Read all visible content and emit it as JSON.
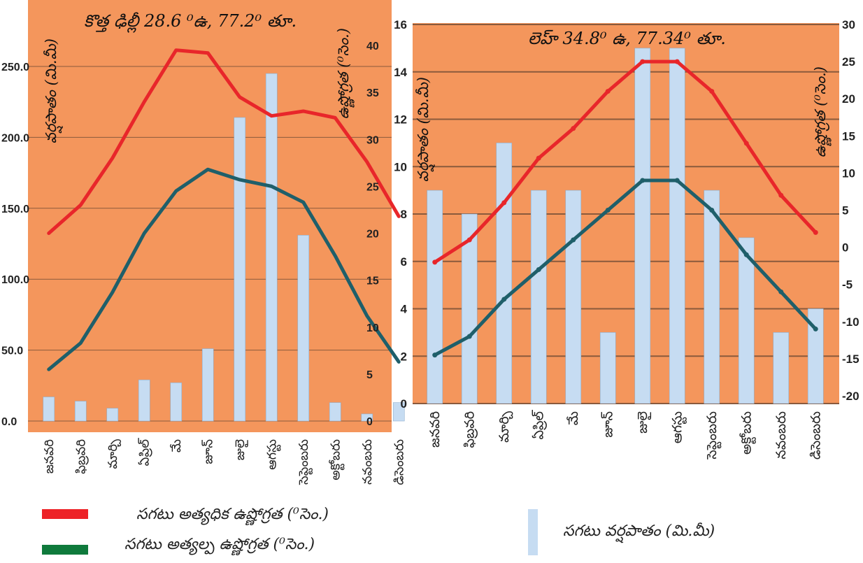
{
  "colors": {
    "plot_bg": "#f4965c",
    "grid": "#8a5a3c",
    "max_line": "#e8262a",
    "min_line": "#1f5f6a",
    "bar": "#c6dcf2",
    "legend_max": "#ed2227",
    "legend_min": "#0f7a3c"
  },
  "chart_data": [
    {
      "type": "bar+line",
      "title": "కొత్త ఢిల్లీ  28.6 ⁰ఉ, 77.2⁰ తూ.",
      "categories": [
        "జనవరి",
        "ఫిబ్రవరి",
        "మార్చి",
        "ఏప్రిల్",
        "మే",
        "జూన్",
        "జులై",
        "ఆగస్టు",
        "సెప్టెంబరు",
        "అక్టోబరు",
        "నవంబరు",
        "డిసెంబరు"
      ],
      "left_axis": {
        "label": "వర్షపాతం (మి.మీ)",
        "range": [
          0,
          250
        ],
        "ticks": [
          "0.0",
          "50.0",
          "100.0",
          "150.0",
          "200.0",
          "250.0"
        ]
      },
      "right_axis": {
        "label": "ఉష్ణోగ్రత (⁰సెం.)",
        "range": [
          0,
          40
        ],
        "ticks": [
          "0",
          "5",
          "10",
          "15",
          "20",
          "25",
          "30",
          "35",
          "40"
        ]
      },
      "series": [
        {
          "name": "సగటు వర్షపాతం (మి.మీ)",
          "kind": "bar",
          "axis": "left",
          "values": [
            17,
            14,
            9,
            29,
            27,
            51,
            214,
            245,
            131,
            13,
            5,
            13
          ]
        },
        {
          "name": "సగటు అత్యధిక ఉష్ణోగ్రత (⁰సెం.)",
          "kind": "line",
          "axis": "right",
          "values": [
            20,
            23,
            28,
            34,
            39.5,
            39.2,
            34.5,
            32.5,
            33,
            32.3,
            27.6,
            21.8
          ]
        },
        {
          "name": "సగటు అత్యల్ప ఉష్ణోగ్రత (⁰సెం.)",
          "kind": "line",
          "axis": "right",
          "values": [
            5.5,
            8.3,
            13.7,
            20,
            24.5,
            26.8,
            25.7,
            25,
            23.3,
            17.6,
            11.2,
            6.3
          ]
        }
      ],
      "grid": true
    },
    {
      "type": "bar+line",
      "title": "లెహ్  34.8⁰ ఉ, 77.34⁰ తూ.",
      "categories": [
        "జనవరి",
        "ఫిబ్రవరి",
        "మార్చి",
        "ఏప్రిల్",
        "మే",
        "జూన్",
        "జులై",
        "ఆగస్టు",
        "సెప్టెంబరు",
        "అక్టోబరు",
        "నవంబరు",
        "డిసెంబరు"
      ],
      "left_axis": {
        "label": "వర్షపాతం (మి.మీ)",
        "range": [
          0,
          16
        ],
        "ticks": [
          "0",
          "2",
          "4",
          "6",
          "8",
          "10",
          "12",
          "14",
          "16"
        ]
      },
      "right_axis": {
        "label": "ఉష్ణోగ్రత (⁰సెం.)",
        "range": [
          -20,
          30
        ],
        "ticks": [
          "-20",
          "-15",
          "-10",
          "-5",
          "0",
          "5",
          "10",
          "15",
          "20",
          "25",
          "30"
        ]
      },
      "series": [
        {
          "name": "సగటు వర్షపాతం (మి.మీ)",
          "kind": "bar",
          "axis": "left",
          "values": [
            9,
            8,
            11,
            9,
            9,
            3,
            15,
            15,
            9,
            7,
            3,
            4
          ]
        },
        {
          "name": "సగటు అత్యధిక ఉష్ణోగ్రత (⁰సెం.)",
          "kind": "line",
          "axis": "right",
          "values": [
            -2,
            1,
            6,
            12,
            16,
            21,
            25,
            25,
            21,
            14,
            7,
            2
          ]
        },
        {
          "name": "సగటు అత్యల్ప ఉష్ణోగ్రత (⁰సెం.)",
          "kind": "line",
          "axis": "right",
          "values": [
            -14.5,
            -12,
            -7,
            -3,
            1,
            5,
            9,
            9,
            5,
            -1,
            -6,
            -11
          ]
        }
      ],
      "grid": true
    }
  ],
  "legend": {
    "max_temp": "సగటు అత్యధిక ఉష్ణోగ్రత (⁰సెం.)",
    "min_temp": "సగటు అత్యల్ప ఉష్ణోగ్రత (⁰సెం.)",
    "rainfall": "సగటు వర్షపాతం (మి.మీ)"
  }
}
